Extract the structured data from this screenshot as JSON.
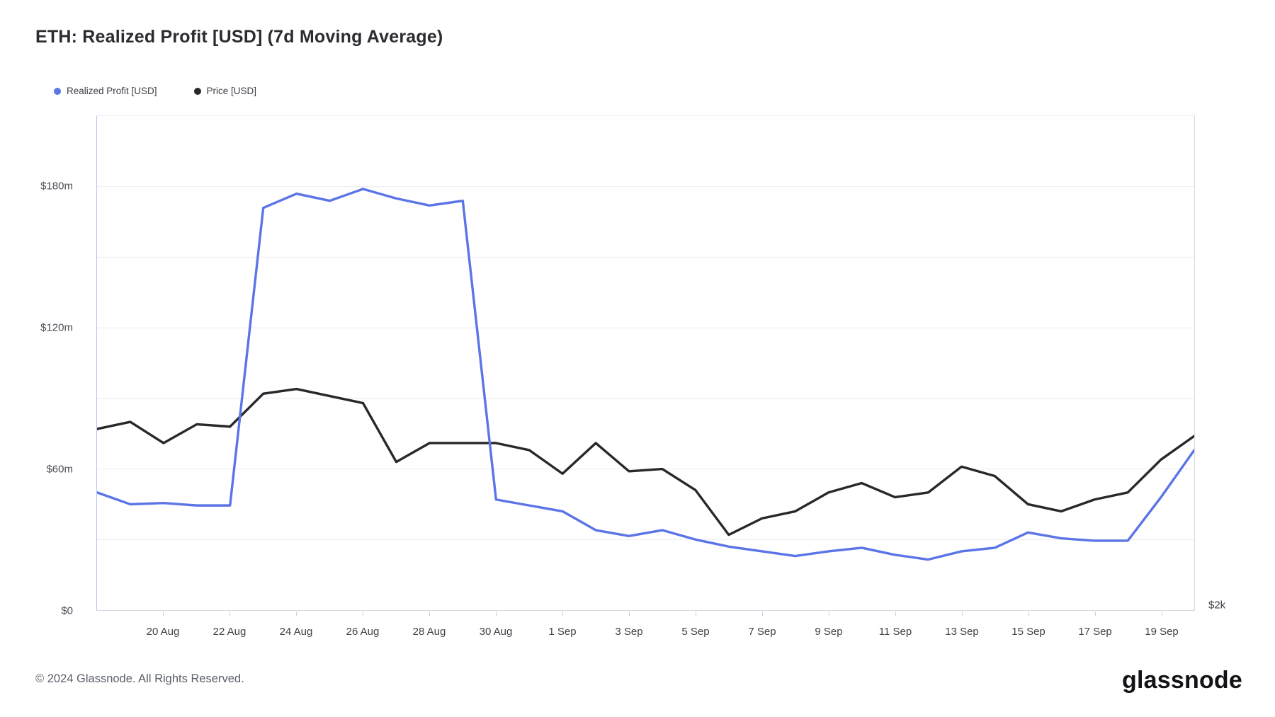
{
  "header": {
    "title": "ETH: Realized Profit [USD] (7d Moving Average)"
  },
  "legend": [
    {
      "label": "Realized Profit [USD]",
      "color": "#5b74e6",
      "icon": "blue-dot"
    },
    {
      "label": "Price [USD]",
      "color": "#28282c",
      "icon": "black-dot"
    }
  ],
  "footer": {
    "copyright": "© 2024 Glassnode. All Rights Reserved.",
    "brand": "glassnode"
  },
  "colors": {
    "background": "#ffffff",
    "gridline": "#f1f1f5",
    "left_axis_line": "#b9c4f1",
    "bottom_axis_line": "#d8d8e0",
    "realized_profit_line": "#5b74e6",
    "price_line": "#28282c",
    "axis_text": "#4d4d58"
  },
  "chart_data": {
    "type": "line",
    "title": "ETH: Realized Profit [USD] (7d Moving Average)",
    "grid": "horizontal-only",
    "legend_position": "top-left",
    "x": [
      "18 Aug",
      "19 Aug",
      "20 Aug",
      "21 Aug",
      "22 Aug",
      "23 Aug",
      "24 Aug",
      "25 Aug",
      "26 Aug",
      "27 Aug",
      "28 Aug",
      "29 Aug",
      "30 Aug",
      "31 Aug",
      "1 Sep",
      "2 Sep",
      "3 Sep",
      "4 Sep",
      "5 Sep",
      "6 Sep",
      "7 Sep",
      "8 Sep",
      "9 Sep",
      "10 Sep",
      "11 Sep",
      "12 Sep",
      "13 Sep",
      "14 Sep",
      "15 Sep",
      "16 Sep",
      "17 Sep",
      "18 Sep",
      "19 Sep",
      "20 Sep"
    ],
    "x_tick_labels": [
      "20 Aug",
      "22 Aug",
      "24 Aug",
      "26 Aug",
      "28 Aug",
      "30 Aug",
      "1 Sep",
      "3 Sep",
      "5 Sep",
      "7 Sep",
      "9 Sep",
      "11 Sep",
      "13 Sep",
      "15 Sep",
      "17 Sep",
      "19 Sep"
    ],
    "x_tick_first_index": 2,
    "x_tick_index_step": 2,
    "y_left": {
      "ticks": [
        {
          "label": "$180m",
          "value": 180
        },
        {
          "label": "$120m",
          "value": 120
        },
        {
          "label": "$60m",
          "value": 60
        },
        {
          "label": "$0",
          "value": 0
        }
      ],
      "range_m": [
        0,
        210
      ],
      "gridline_step_m": 30,
      "unit": "USD millions"
    },
    "y_right": {
      "visible_tick": "$2k",
      "note": "secondary price axis; only the $2k tick at the baseline is visible"
    },
    "series": [
      {
        "name": "Realized Profit [USD]",
        "color": "#5b74e6",
        "axis": "left",
        "unit": "USD millions",
        "values": [
          50,
          45,
          45.5,
          44.5,
          44.5,
          171,
          177,
          174,
          179,
          175,
          172,
          174,
          47,
          44.5,
          42,
          34,
          31.5,
          34,
          30,
          27,
          25,
          23,
          25,
          26.5,
          23.5,
          21.5,
          25,
          26.5,
          33,
          30.5,
          29.5,
          29.5,
          48,
          68
        ]
      },
      {
        "name": "Price [USD]",
        "color": "#28282c",
        "axis": "right",
        "unit": "plotted in left-axis-equivalent USD millions",
        "values": [
          77,
          80,
          71,
          79,
          78,
          92,
          94,
          91,
          88,
          63,
          71,
          71,
          71,
          68,
          58,
          71,
          59,
          60,
          51,
          32,
          39,
          42,
          50,
          54,
          48,
          50,
          61,
          57,
          45,
          42,
          47,
          50,
          64,
          74
        ]
      }
    ]
  }
}
